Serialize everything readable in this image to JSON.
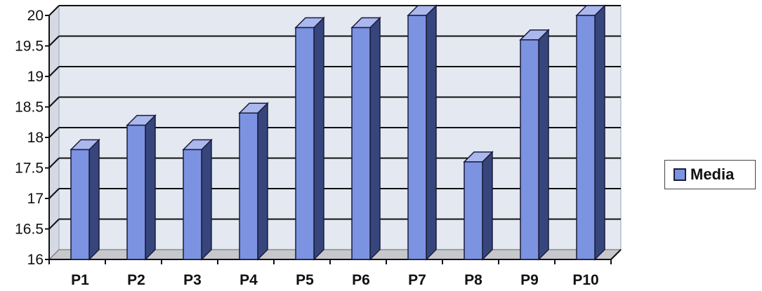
{
  "chart_data": {
    "type": "bar",
    "categories": [
      "P1",
      "P2",
      "P3",
      "P4",
      "P5",
      "P6",
      "P7",
      "P8",
      "P9",
      "P10"
    ],
    "series": [
      {
        "name": "Media",
        "values": [
          17.8,
          18.2,
          17.8,
          18.4,
          19.8,
          19.8,
          20.0,
          17.6,
          19.6,
          20.0
        ]
      }
    ],
    "ylim": [
      16,
      20
    ],
    "yticks": [
      "16",
      "16.5",
      "17",
      "17.5",
      "18",
      "18.5",
      "19",
      "19.5",
      "20"
    ],
    "ytick_values": [
      16,
      16.5,
      17,
      17.5,
      18,
      18.5,
      19,
      19.5,
      20
    ],
    "grid": true,
    "style": "3d-column",
    "legend_position": "right",
    "colors": {
      "bar_front": "#7b93e0",
      "bar_side": "#36467c",
      "bar_top": "#aab8ee",
      "bar_outline": "#1b1b3a",
      "wall": "#e3e8f1",
      "floor": "#c6c8cc",
      "grid": "#111111"
    }
  },
  "legend": {
    "label": "Media"
  }
}
